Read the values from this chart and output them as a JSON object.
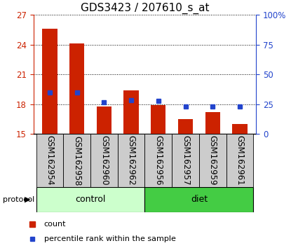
{
  "title": "GDS3423 / 207610_s_at",
  "samples": [
    "GSM162954",
    "GSM162958",
    "GSM162960",
    "GSM162962",
    "GSM162956",
    "GSM162957",
    "GSM162959",
    "GSM162961"
  ],
  "groups": [
    "control",
    "control",
    "control",
    "control",
    "diet",
    "diet",
    "diet",
    "diet"
  ],
  "bar_values": [
    25.6,
    24.1,
    17.8,
    19.4,
    17.9,
    16.5,
    17.2,
    16.0
  ],
  "percentile_values": [
    19.2,
    19.15,
    18.2,
    18.4,
    18.3,
    17.8,
    17.8,
    17.8
  ],
  "ylim_left": [
    15,
    27
  ],
  "ylim_right": [
    0,
    100
  ],
  "yticks_left": [
    15,
    18,
    21,
    24,
    27
  ],
  "yticks_right": [
    0,
    25,
    50,
    75,
    100
  ],
  "bar_color": "#cc2200",
  "blue_color": "#2244cc",
  "bar_width": 0.55,
  "base_value": 15,
  "control_color_light": "#ccffcc",
  "control_color_dark": "#44cc44",
  "diet_color": "#44cc44",
  "gray_color": "#cccccc",
  "title_fontsize": 11,
  "tick_label_fontsize": 8.5,
  "n_control": 4,
  "n_diet": 4
}
